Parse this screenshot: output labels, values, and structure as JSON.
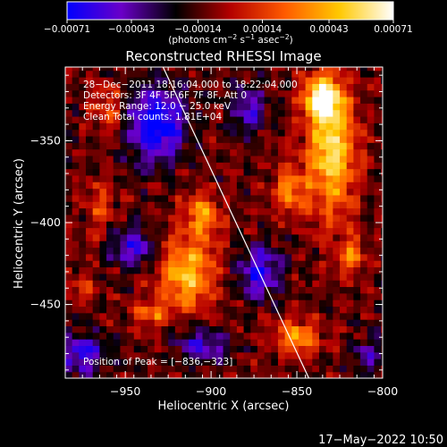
{
  "chart_data": {
    "type": "heatmap",
    "title": "Reconstructed RHESSI Image",
    "xlabel": "Heliocentric X (arcsec)",
    "ylabel": "Heliocentric Y (arcsec)",
    "xlim": [
      -985,
      -800
    ],
    "ylim": [
      -495,
      -305
    ],
    "xticks": [
      -950,
      -900,
      -850,
      -800
    ],
    "xtick_labels": [
      "−950",
      "−900",
      "−850",
      "−800"
    ],
    "yticks": [
      -350,
      -400,
      -450
    ],
    "ytick_labels": [
      "−350",
      "−400",
      "−450"
    ],
    "colorbar": {
      "range": [
        -0.00071,
        0.00071
      ],
      "ticks": [
        -0.00071,
        -0.00043,
        -0.00014,
        0.00014,
        0.00043,
        0.00071
      ],
      "tick_labels": [
        "−0.00071",
        "−0.00043",
        "−0.00014",
        "0.00014",
        "0.00043",
        "0.00071"
      ],
      "unit_parts": [
        "(photons cm",
        "−2",
        " s",
        "−1",
        " asec",
        "−2",
        ")"
      ],
      "colors": [
        "#0000ff",
        "#6a00c8",
        "#000000",
        "#b40000",
        "#ff5a00",
        "#ffc800",
        "#ffffff"
      ]
    },
    "annotations": [
      "28−Dec−2011 18:16:04.000 to 18:22:04.000",
      "Detectors: 3F 4F 5F 6F 7F 8F, Att 0",
      "Energy Range: 12.0 − 25.0 keV",
      "Clean    Total counts: 1.81E+04"
    ],
    "peak_label": "Position of Peak = [−836,−323]",
    "peak": [
      -836,
      -323
    ],
    "limb_line": [
      [
        -928,
        -305
      ],
      [
        -843,
        -495
      ]
    ],
    "hot_spots": [
      {
        "x": -915,
        "y": -430,
        "rx": 16,
        "ry": 22,
        "v": 0.00062
      },
      {
        "x": -905,
        "y": -395,
        "rx": 10,
        "ry": 14,
        "v": 0.00045
      },
      {
        "x": -935,
        "y": -455,
        "rx": 10,
        "ry": 8,
        "v": 0.00035
      },
      {
        "x": -855,
        "y": -380,
        "rx": 10,
        "ry": 14,
        "v": 0.0004
      },
      {
        "x": -830,
        "y": -355,
        "rx": 14,
        "ry": 40,
        "v": 0.00068
      },
      {
        "x": -836,
        "y": -323,
        "rx": 10,
        "ry": 12,
        "v": 0.00071
      },
      {
        "x": -850,
        "y": -470,
        "rx": 12,
        "ry": 10,
        "v": 0.00052
      },
      {
        "x": -818,
        "y": -420,
        "rx": 8,
        "ry": 12,
        "v": 0.00035
      },
      {
        "x": -960,
        "y": -330,
        "rx": 10,
        "ry": 14,
        "v": 0.0003
      },
      {
        "x": -965,
        "y": -390,
        "rx": 8,
        "ry": 18,
        "v": 0.00025
      },
      {
        "x": -975,
        "y": -440,
        "rx": 8,
        "ry": 10,
        "v": 0.0002
      }
    ],
    "cold_spots": [
      {
        "x": -932,
        "y": -340,
        "rx": 16,
        "ry": 22,
        "v": -0.00071
      },
      {
        "x": -945,
        "y": -415,
        "rx": 14,
        "ry": 12,
        "v": -0.00045
      },
      {
        "x": -975,
        "y": -480,
        "rx": 14,
        "ry": 12,
        "v": -0.0005
      },
      {
        "x": -905,
        "y": -475,
        "rx": 14,
        "ry": 10,
        "v": -0.00045
      },
      {
        "x": -872,
        "y": -430,
        "rx": 12,
        "ry": 16,
        "v": -0.00052
      },
      {
        "x": -878,
        "y": -330,
        "rx": 10,
        "ry": 14,
        "v": -0.0004
      },
      {
        "x": -808,
        "y": -480,
        "rx": 8,
        "ry": 10,
        "v": -0.00035
      }
    ]
  },
  "footer_timestamp": "17−May−2022 10:50"
}
